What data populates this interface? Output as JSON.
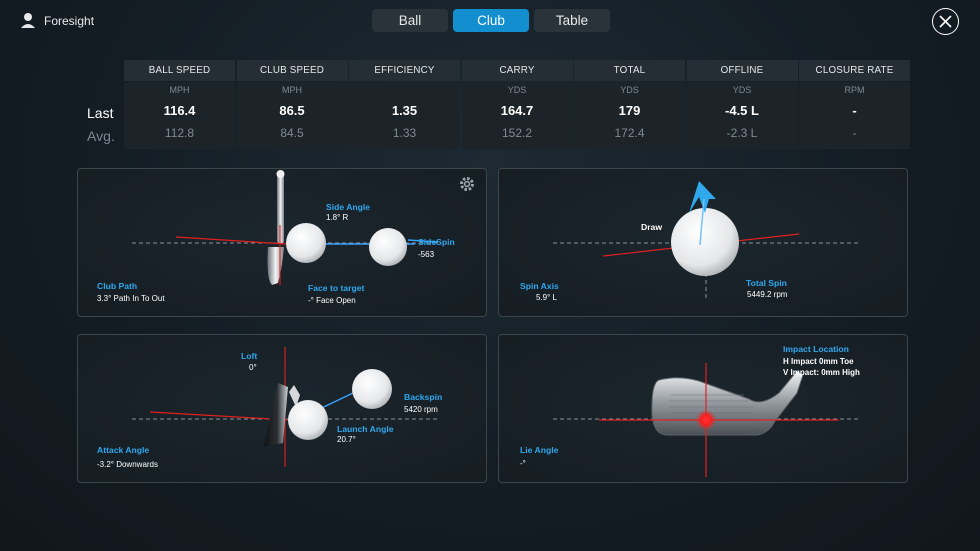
{
  "app": {
    "name": "Foresight"
  },
  "tabs": [
    {
      "label": "Ball"
    },
    {
      "label": "Club"
    },
    {
      "label": "Table"
    }
  ],
  "rows": {
    "last_label": "Last",
    "avg_label": "Avg."
  },
  "metrics": [
    {
      "name": "BALL SPEED",
      "unit": "MPH",
      "last": "116.4",
      "avg": "112.8"
    },
    {
      "name": "CLUB SPEED",
      "unit": "MPH",
      "last": "86.5",
      "avg": "84.5"
    },
    {
      "name": "EFFICIENCY",
      "unit": "",
      "last": "1.35",
      "avg": "1.33"
    },
    {
      "name": "CARRY",
      "unit": "YDS",
      "last": "164.7",
      "avg": "152.2"
    },
    {
      "name": "TOTAL",
      "unit": "YDS",
      "last": "179",
      "avg": "172.4"
    },
    {
      "name": "OFFLINE",
      "unit": "YDS",
      "last": "-4.5 L",
      "avg": "-2.3 L"
    },
    {
      "name": "CLOSURE RATE",
      "unit": "RPM",
      "last": "-",
      "avg": "-"
    }
  ],
  "top_view": {
    "side_angle_label": "Side Angle",
    "side_angle_value": "1.8°  R",
    "sidespin_label": "SideSpin",
    "sidespin_value": "-563",
    "club_path_label": "Club Path",
    "club_path_value": "3.3° Path In To Out",
    "face_label": "Face to target",
    "face_value": "-° Face Open"
  },
  "spin_view": {
    "draw_label": "Draw",
    "spin_axis_label": "Spin Axis",
    "spin_axis_value": "5.9°  L",
    "total_spin_label": "Total Spin",
    "total_spin_value": "5449.2 rpm"
  },
  "side_view": {
    "loft_label": "Loft",
    "loft_value": "0°",
    "backspin_label": "Backspin",
    "backspin_value": "5420 rpm",
    "launch_label": "Launch Angle",
    "launch_value": "20.7°",
    "attack_label": "Attack Angle",
    "attack_value": "-3.2° Downwards"
  },
  "impact_view": {
    "impact_label": "Impact Location",
    "h_impact": "H Impact 0mm Toe",
    "v_impact": "V Impact: 0mm High",
    "lie_label": "Lie Angle",
    "lie_value": "-°"
  },
  "colors": {
    "accent": "#138fd0",
    "label_blue": "#2fa8ee",
    "red": "#e02020",
    "path_blue": "#3aa0ff"
  }
}
